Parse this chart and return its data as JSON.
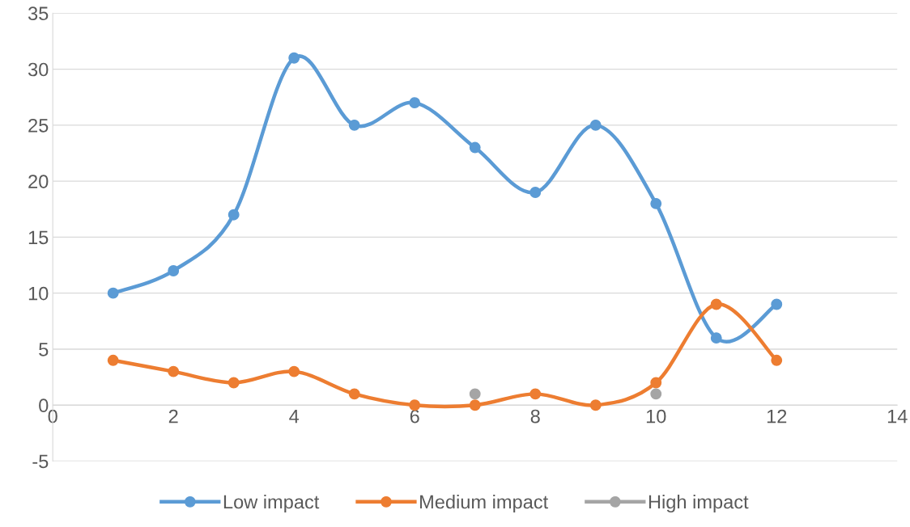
{
  "chart_data": {
    "type": "line",
    "x": [
      1,
      2,
      3,
      4,
      5,
      6,
      7,
      8,
      9,
      10,
      11,
      12
    ],
    "series": [
      {
        "name": "Low impact",
        "color": "#5b9bd5",
        "values": [
          10,
          12,
          17,
          31,
          25,
          27,
          23,
          19,
          25,
          18,
          6,
          9
        ]
      },
      {
        "name": "Medium impact",
        "color": "#ed7d31",
        "values": [
          4,
          3,
          2,
          3,
          1,
          0,
          0,
          1,
          0,
          2,
          9,
          4
        ]
      },
      {
        "name": "High impact",
        "type": "scatter",
        "color": "#a5a5a5",
        "values": [
          null,
          null,
          null,
          null,
          null,
          null,
          1,
          null,
          null,
          1,
          null,
          null
        ]
      }
    ],
    "xlim": [
      0,
      14
    ],
    "xticks": [
      0,
      2,
      4,
      6,
      8,
      10,
      12,
      14
    ],
    "ylim": [
      -5,
      35
    ],
    "yticks": [
      -5,
      0,
      5,
      10,
      15,
      20,
      25,
      30,
      35
    ],
    "grid": "y",
    "legend": "bottom",
    "marker": "circle",
    "line_style": "solid"
  }
}
